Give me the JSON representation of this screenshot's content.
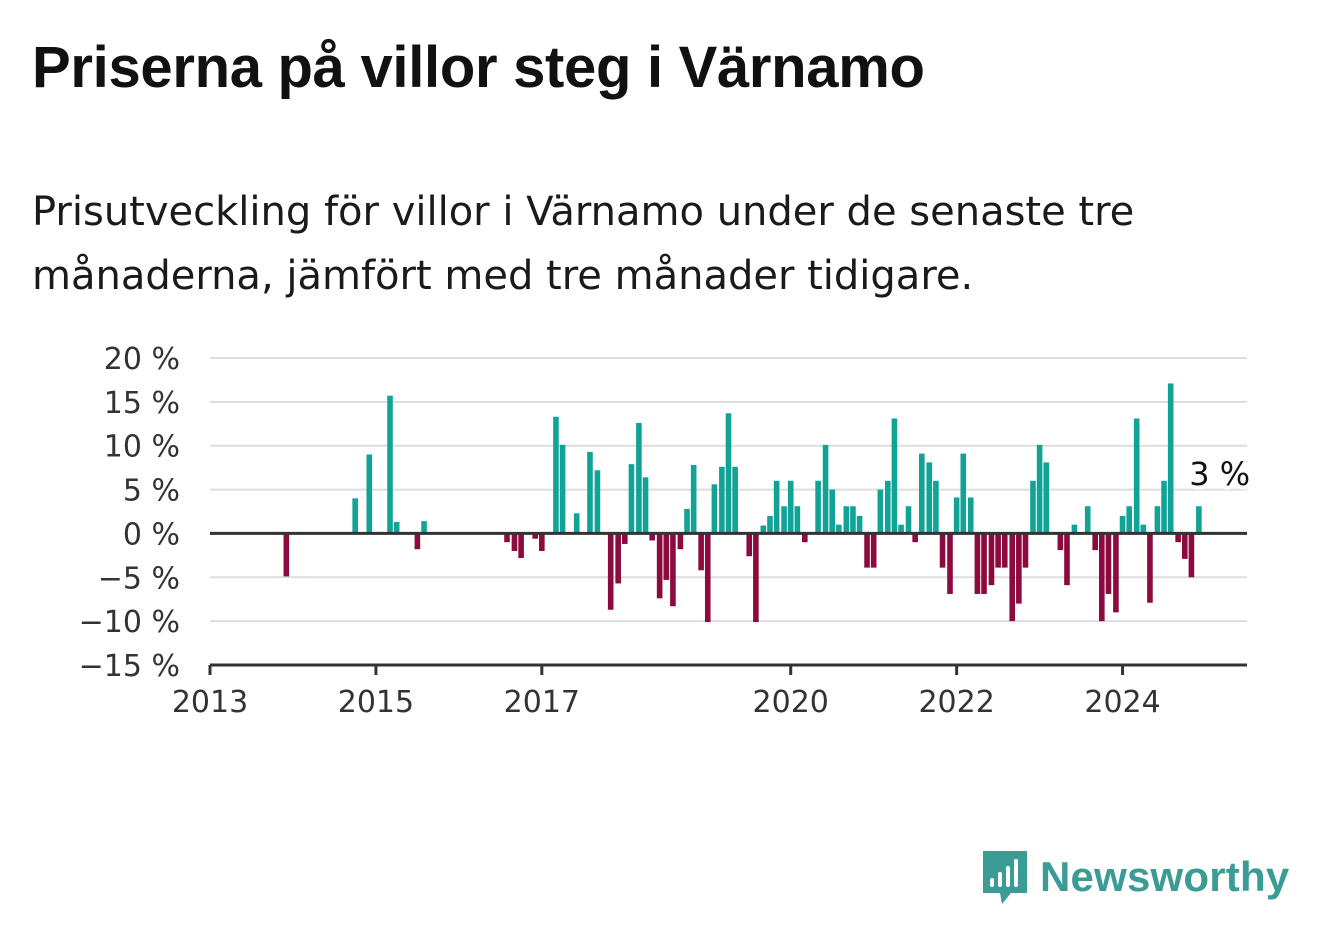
{
  "title": "Priserna på villor steg i Värnamo",
  "subtitle": "Prisutveckling för villor i Värnamo under de senaste tre månaderna, jämfört med tre månader tidigare.",
  "brand": {
    "name": "Newsworthy",
    "icon": "bar-chart-speech-bubble-icon"
  },
  "colors": {
    "positive": "#12a397",
    "negative": "#8c0a3e",
    "brand": "#3b9c95",
    "grid": "#dddddd",
    "axis": "#333333"
  },
  "chart_data": {
    "type": "bar",
    "xlabel": "",
    "ylabel": "",
    "ylim": [
      -15,
      20
    ],
    "y_ticks": [
      {
        "value": 20,
        "label": "20 %"
      },
      {
        "value": 15,
        "label": "15 %"
      },
      {
        "value": 10,
        "label": "10 %"
      },
      {
        "value": 5,
        "label": "5 %"
      },
      {
        "value": 0,
        "label": "0 %"
      },
      {
        "value": -5,
        "label": "−5 %"
      },
      {
        "value": -10,
        "label": "−10 %"
      },
      {
        "value": -15,
        "label": "−15 %"
      }
    ],
    "x_ticks": [
      {
        "value": 2013,
        "label": "2013"
      },
      {
        "value": 2015,
        "label": "2015"
      },
      {
        "value": 2017,
        "label": "2017"
      },
      {
        "value": 2020,
        "label": "2020"
      },
      {
        "value": 2022,
        "label": "2022"
      },
      {
        "value": 2024,
        "label": "2024"
      }
    ],
    "grid": true,
    "annotation": {
      "x": 2024.9,
      "value": 3,
      "label": "3 %"
    },
    "points": [
      {
        "x": 2013.92,
        "value": -4.9
      },
      {
        "x": 2014.75,
        "value": 4.0
      },
      {
        "x": 2014.92,
        "value": 9.0
      },
      {
        "x": 2015.17,
        "value": 15.7
      },
      {
        "x": 2015.25,
        "value": 1.3
      },
      {
        "x": 2015.5,
        "value": -1.8
      },
      {
        "x": 2015.58,
        "value": 1.4
      },
      {
        "x": 2016.58,
        "value": -1.0
      },
      {
        "x": 2016.67,
        "value": -2.0
      },
      {
        "x": 2016.75,
        "value": -2.8
      },
      {
        "x": 2016.92,
        "value": -0.6
      },
      {
        "x": 2017.0,
        "value": -2.0
      },
      {
        "x": 2017.17,
        "value": 13.3
      },
      {
        "x": 2017.25,
        "value": 10.1
      },
      {
        "x": 2017.42,
        "value": 2.3
      },
      {
        "x": 2017.58,
        "value": 9.3
      },
      {
        "x": 2017.67,
        "value": 7.2
      },
      {
        "x": 2017.83,
        "value": -8.7
      },
      {
        "x": 2017.92,
        "value": -5.7
      },
      {
        "x": 2018.0,
        "value": -1.2
      },
      {
        "x": 2018.08,
        "value": 7.9
      },
      {
        "x": 2018.17,
        "value": 12.6
      },
      {
        "x": 2018.25,
        "value": 6.4
      },
      {
        "x": 2018.33,
        "value": -0.8
      },
      {
        "x": 2018.42,
        "value": -7.4
      },
      {
        "x": 2018.5,
        "value": -5.3
      },
      {
        "x": 2018.58,
        "value": -8.3
      },
      {
        "x": 2018.67,
        "value": -1.8
      },
      {
        "x": 2018.75,
        "value": 2.8
      },
      {
        "x": 2018.83,
        "value": 7.8
      },
      {
        "x": 2018.92,
        "value": -4.2
      },
      {
        "x": 2019.0,
        "value": -10.1
      },
      {
        "x": 2019.08,
        "value": 5.6
      },
      {
        "x": 2019.17,
        "value": 7.6
      },
      {
        "x": 2019.25,
        "value": 13.7
      },
      {
        "x": 2019.33,
        "value": 7.6
      },
      {
        "x": 2019.5,
        "value": -2.6
      },
      {
        "x": 2019.58,
        "value": -10.1
      },
      {
        "x": 2019.67,
        "value": 0.9
      },
      {
        "x": 2019.75,
        "value": 2.0
      },
      {
        "x": 2019.83,
        "value": 6.0
      },
      {
        "x": 2019.92,
        "value": 3.1
      },
      {
        "x": 2020.0,
        "value": 6.0
      },
      {
        "x": 2020.08,
        "value": 3.1
      },
      {
        "x": 2020.17,
        "value": -1.0
      },
      {
        "x": 2020.33,
        "value": 6.0
      },
      {
        "x": 2020.42,
        "value": 10.1
      },
      {
        "x": 2020.5,
        "value": 5.0
      },
      {
        "x": 2020.58,
        "value": 1.0
      },
      {
        "x": 2020.67,
        "value": 3.1
      },
      {
        "x": 2020.75,
        "value": 3.1
      },
      {
        "x": 2020.83,
        "value": 2.0
      },
      {
        "x": 2020.92,
        "value": -3.9
      },
      {
        "x": 2021.0,
        "value": -3.9
      },
      {
        "x": 2021.08,
        "value": 5.0
      },
      {
        "x": 2021.17,
        "value": 6.0
      },
      {
        "x": 2021.25,
        "value": 13.1
      },
      {
        "x": 2021.33,
        "value": 1.0
      },
      {
        "x": 2021.42,
        "value": 3.1
      },
      {
        "x": 2021.5,
        "value": -1.0
      },
      {
        "x": 2021.58,
        "value": 9.1
      },
      {
        "x": 2021.67,
        "value": 8.1
      },
      {
        "x": 2021.75,
        "value": 6.0
      },
      {
        "x": 2021.83,
        "value": -3.9
      },
      {
        "x": 2021.92,
        "value": -6.9
      },
      {
        "x": 2022.0,
        "value": 4.1
      },
      {
        "x": 2022.08,
        "value": 9.1
      },
      {
        "x": 2022.17,
        "value": 4.1
      },
      {
        "x": 2022.25,
        "value": -6.9
      },
      {
        "x": 2022.33,
        "value": -6.9
      },
      {
        "x": 2022.42,
        "value": -5.9
      },
      {
        "x": 2022.5,
        "value": -3.9
      },
      {
        "x": 2022.58,
        "value": -3.9
      },
      {
        "x": 2022.67,
        "value": -10.0
      },
      {
        "x": 2022.75,
        "value": -8.0
      },
      {
        "x": 2022.83,
        "value": -3.9
      },
      {
        "x": 2022.92,
        "value": 6.0
      },
      {
        "x": 2023.0,
        "value": 10.1
      },
      {
        "x": 2023.08,
        "value": 8.1
      },
      {
        "x": 2023.25,
        "value": -1.9
      },
      {
        "x": 2023.33,
        "value": -5.9
      },
      {
        "x": 2023.42,
        "value": 1.0
      },
      {
        "x": 2023.58,
        "value": 3.1
      },
      {
        "x": 2023.67,
        "value": -1.9
      },
      {
        "x": 2023.75,
        "value": -10.0
      },
      {
        "x": 2023.83,
        "value": -6.9
      },
      {
        "x": 2023.92,
        "value": -9.0
      },
      {
        "x": 2024.0,
        "value": 2.0
      },
      {
        "x": 2024.08,
        "value": 3.1
      },
      {
        "x": 2024.17,
        "value": 13.1
      },
      {
        "x": 2024.25,
        "value": 1.0
      },
      {
        "x": 2024.33,
        "value": -7.9
      },
      {
        "x": 2024.42,
        "value": 3.1
      },
      {
        "x": 2024.5,
        "value": 6.0
      },
      {
        "x": 2024.58,
        "value": 17.1
      },
      {
        "x": 2024.67,
        "value": -1.0
      },
      {
        "x": 2024.75,
        "value": -2.9
      },
      {
        "x": 2024.83,
        "value": -5.0
      },
      {
        "x": 2024.92,
        "value": 3.1
      }
    ]
  }
}
